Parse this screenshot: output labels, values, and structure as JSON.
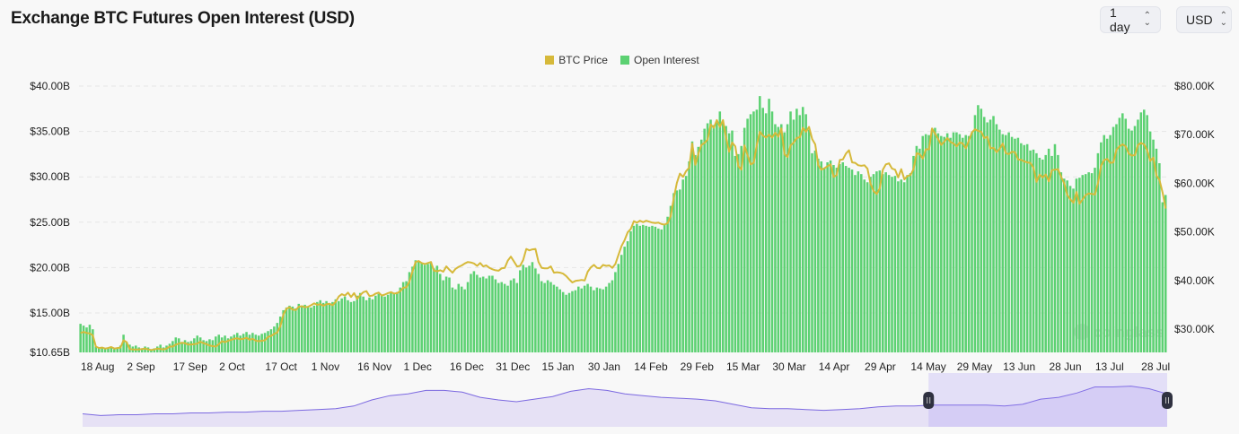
{
  "header": {
    "title": "Exchange BTC Futures Open Interest (USD)",
    "interval_select": {
      "value": "1 day",
      "icon": "chevron-up-down-icon"
    },
    "currency_select": {
      "value": "USD",
      "icon": "chevron-up-down-icon"
    }
  },
  "watermark": "coinglass",
  "chart_data": {
    "type": "bar+line",
    "title": "Exchange BTC Futures Open Interest (USD)",
    "legend": {
      "placement": "top-center"
    },
    "grid": true,
    "x_start": "2023-08-18",
    "x_end": "2024-08-05",
    "x_ticks": [
      "18 Aug",
      "2 Sep",
      "17 Sep",
      "2 Oct",
      "17 Oct",
      "1 Nov",
      "16 Nov",
      "1 Dec",
      "16 Dec",
      "31 Dec",
      "15 Jan",
      "30 Jan",
      "14 Feb",
      "29 Feb",
      "15 Mar",
      "30 Mar",
      "14 Apr",
      "29 Apr",
      "14 May",
      "29 May",
      "13 Jun",
      "28 Jun",
      "13 Jul",
      "28 Jul"
    ],
    "y_left": {
      "ticks": [
        "$40.00B",
        "$35.00B",
        "$30.00B",
        "$25.00B",
        "$20.00B",
        "$15.00B",
        "$10.65B"
      ],
      "tick_values": [
        40,
        35,
        30,
        25,
        20,
        15,
        10.65
      ],
      "range": [
        10.65,
        40
      ],
      "unit": "B USD"
    },
    "y_right": {
      "ticks": [
        "$80.00K",
        "$70.00K",
        "$60.00K",
        "$50.00K",
        "$40.00K",
        "$30.00K"
      ],
      "tick_values": [
        80,
        70,
        60,
        50,
        40,
        30
      ],
      "range": [
        25.2,
        80
      ],
      "unit": "K USD"
    },
    "series": [
      {
        "name": "BTC Price",
        "type": "line",
        "axis": "right",
        "color": "#d6b93a",
        "values": [
          29.2,
          29.4,
          29.2,
          29.1,
          28.7,
          26.4,
          26.1,
          26.2,
          26.0,
          26.1,
          26.3,
          26.0,
          26.1,
          26.2,
          27.7,
          27.3,
          25.9,
          25.8,
          25.8,
          25.8,
          25.9,
          26.0,
          25.8,
          25.7,
          25.8,
          26.0,
          25.9,
          25.8,
          26.0,
          26.4,
          26.4,
          26.8,
          27.0,
          27.2,
          27.1,
          26.8,
          26.8,
          26.9,
          27.0,
          27.4,
          27.1,
          26.9,
          26.6,
          26.5,
          26.4,
          26.9,
          27.5,
          27.3,
          27.6,
          27.8,
          28.0,
          28.1,
          27.9,
          28.0,
          28.2,
          27.8,
          28.0,
          27.6,
          27.5,
          27.6,
          27.7,
          28.4,
          28.6,
          29.0,
          29.3,
          30.6,
          33.0,
          34.2,
          34.5,
          34.0,
          33.9,
          34.6,
          34.7,
          34.5,
          34.6,
          34.9,
          35.3,
          35.0,
          35.1,
          34.8,
          35.1,
          35.2,
          34.9,
          35.6,
          36.7,
          37.2,
          36.9,
          37.5,
          36.6,
          37.4,
          36.2,
          37.0,
          37.6,
          37.8,
          36.8,
          36.9,
          37.3,
          37.5,
          36.9,
          37.1,
          37.4,
          37.6,
          37.3,
          37.4,
          37.8,
          38.5,
          38.6,
          39.8,
          41.9,
          43.8,
          44.0,
          43.6,
          43.4,
          43.6,
          43.8,
          42.0,
          41.9,
          42.1,
          41.8,
          42.9,
          42.2,
          41.6,
          42.4,
          42.8,
          43.1,
          43.5,
          43.8,
          43.7,
          43.5,
          43.0,
          43.6,
          42.9,
          43.1,
          42.6,
          42.3,
          42.1,
          42.0,
          42.5,
          42.6,
          44.1,
          44.9,
          43.9,
          42.9,
          43.0,
          44.2,
          46.5,
          46.2,
          46.4,
          46.5,
          43.8,
          42.6,
          42.5,
          42.5,
          42.9,
          41.6,
          41.7,
          41.6,
          41.4,
          40.9,
          40.2,
          39.6,
          39.9,
          40.0,
          40.1,
          40.0,
          41.8,
          42.7,
          43.2,
          42.6,
          42.5,
          43.2,
          43.0,
          43.1,
          42.6,
          43.4,
          45.3,
          47.1,
          48.3,
          49.9,
          50.6,
          52.2,
          51.9,
          52.3,
          52.0,
          52.3,
          52.1,
          51.9,
          51.8,
          51.9,
          51.6,
          51.5,
          51.8,
          53.3,
          57.0,
          60.1,
          62.0,
          61.3,
          62.5,
          63.2,
          68.2,
          63.8,
          66.1,
          67.9,
          68.3,
          69.0,
          72.1,
          71.4,
          73.0,
          71.6,
          73.0,
          69.4,
          66.5,
          68.4,
          67.6,
          63.5,
          62.8,
          67.8,
          65.7,
          63.9,
          64.2,
          67.9,
          70.6,
          69.8,
          69.4,
          70.0,
          69.4,
          70.4,
          69.6,
          71.3,
          66.0,
          65.4,
          67.8,
          68.4,
          69.3,
          69.5,
          71.4,
          70.6,
          71.6,
          69.1,
          68.0,
          63.7,
          62.8,
          63.1,
          63.5,
          63.9,
          61.3,
          61.7,
          64.8,
          64.9,
          66.1,
          66.8,
          64.3,
          64.2,
          63.7,
          63.6,
          63.7,
          63.0,
          59.9,
          58.4,
          57.8,
          59.0,
          62.8,
          63.9,
          64.1,
          63.0,
          62.8,
          61.2,
          62.9,
          60.8,
          61.5,
          61.7,
          62.9,
          66.2,
          66.0,
          65.1,
          67.0,
          67.0,
          71.3,
          70.2,
          69.1,
          67.9,
          68.6,
          69.3,
          68.5,
          68.2,
          67.6,
          68.4,
          68.2,
          67.2,
          68.8,
          70.5,
          71.1,
          70.8,
          70.6,
          69.3,
          69.6,
          67.2,
          67.3,
          66.4,
          67.1,
          68.2,
          66.2,
          66.0,
          66.5,
          66.4,
          64.9,
          64.8,
          64.5,
          64.3,
          64.2,
          63.2,
          60.3,
          61.8,
          61.2,
          61.8,
          60.4,
          62.7,
          62.8,
          62.9,
          61.3,
          60.0,
          57.6,
          56.7,
          56.0,
          58.2,
          55.8,
          56.7,
          57.6,
          57.9,
          57.8,
          57.7,
          60.1,
          63.6,
          64.8,
          65.0,
          64.2,
          64.3,
          66.9,
          67.6,
          68.0,
          67.6,
          66.1,
          65.7,
          65.8,
          67.9,
          68.3,
          68.0,
          66.8,
          64.6,
          65.3,
          61.6,
          60.7,
          58.1,
          54.8
        ]
      },
      {
        "name": "Open Interest",
        "type": "bar",
        "axis": "left",
        "color": "#5cd172",
        "values": [
          13.8,
          13.6,
          13.4,
          13.7,
          13.2,
          11.3,
          11.1,
          11.2,
          11.0,
          11.1,
          11.2,
          11.0,
          11.1,
          11.4,
          12.6,
          11.8,
          11.5,
          11.3,
          11.4,
          11.2,
          11.1,
          11.3,
          11.2,
          11.0,
          11.1,
          11.3,
          11.5,
          11.2,
          11.4,
          11.6,
          11.9,
          12.3,
          12.2,
          11.8,
          12.0,
          11.8,
          11.9,
          12.2,
          12.5,
          12.3,
          12.0,
          11.9,
          12.1,
          12.0,
          12.4,
          12.6,
          12.3,
          12.5,
          12.2,
          12.4,
          12.6,
          12.8,
          12.5,
          12.7,
          12.9,
          12.6,
          12.8,
          12.6,
          12.5,
          12.7,
          12.8,
          13.0,
          13.2,
          13.5,
          13.9,
          14.6,
          15.3,
          15.6,
          15.8,
          15.7,
          15.5,
          16.0,
          15.8,
          15.9,
          15.7,
          15.6,
          15.8,
          16.2,
          16.4,
          16.1,
          16.3,
          16.0,
          16.2,
          16.5,
          16.3,
          16.6,
          16.8,
          16.4,
          16.2,
          16.3,
          16.9,
          17.2,
          16.8,
          16.4,
          16.7,
          16.5,
          16.9,
          17.1,
          16.9,
          16.8,
          17.0,
          17.2,
          17.1,
          17.3,
          17.8,
          18.4,
          18.5,
          19.5,
          20.1,
          20.8,
          20.7,
          20.5,
          20.3,
          20.4,
          20.6,
          19.9,
          20.2,
          19.3,
          18.6,
          19.0,
          18.9,
          17.8,
          17.6,
          18.2,
          17.9,
          17.6,
          18.4,
          19.3,
          19.6,
          19.2,
          18.9,
          19.0,
          18.8,
          19.1,
          19.1,
          18.7,
          18.3,
          18.4,
          18.2,
          18.0,
          18.6,
          18.8,
          18.3,
          19.7,
          20.3,
          20.0,
          20.2,
          20.6,
          19.9,
          19.3,
          18.5,
          18.3,
          18.6,
          18.4,
          18.1,
          17.9,
          17.6,
          17.3,
          17.0,
          17.2,
          17.4,
          17.5,
          17.9,
          17.7,
          18.0,
          18.2,
          17.9,
          17.5,
          17.8,
          17.7,
          17.6,
          17.9,
          18.3,
          18.6,
          19.5,
          20.4,
          21.4,
          22.3,
          22.9,
          24.0,
          24.6,
          24.8,
          24.6,
          24.7,
          24.6,
          24.5,
          24.6,
          24.5,
          24.3,
          24.2,
          24.7,
          25.6,
          26.8,
          28.2,
          28.5,
          28.6,
          29.7,
          30.1,
          31.7,
          33.9,
          32.4,
          33.3,
          34.1,
          35.3,
          35.9,
          36.3,
          35.7,
          36.0,
          37.2,
          35.9,
          35.6,
          34.8,
          35.1,
          32.3,
          32.5,
          33.4,
          35.4,
          36.4,
          36.9,
          37.2,
          37.4,
          38.9,
          37.6,
          37.0,
          38.6,
          37.2,
          35.8,
          35.5,
          35.8,
          34.9,
          35.8,
          37.2,
          36.3,
          37.5,
          36.8,
          37.7,
          36.9,
          35.2,
          32.6,
          32.9,
          32.0,
          31.7,
          30.9,
          31.6,
          31.8,
          31.3,
          31.0,
          31.4,
          31.6,
          31.2,
          31.0,
          30.8,
          30.2,
          30.6,
          30.3,
          29.7,
          29.4,
          30.0,
          30.3,
          30.6,
          30.7,
          30.3,
          30.5,
          30.2,
          30.0,
          30.1,
          29.5,
          29.7,
          29.4,
          30.2,
          30.4,
          32.3,
          33.4,
          33.1,
          34.5,
          34.7,
          34.6,
          35.2,
          35.4,
          34.8,
          34.5,
          34.4,
          34.8,
          34.3,
          34.9,
          34.9,
          34.7,
          34.3,
          34.6,
          34.5,
          34.9,
          36.8,
          37.9,
          37.5,
          36.6,
          36.0,
          36.3,
          36.7,
          35.8,
          35.2,
          34.7,
          34.6,
          34.9,
          34.4,
          34.2,
          34.3,
          33.7,
          33.5,
          33.6,
          32.9,
          33.0,
          32.6,
          32.1,
          31.9,
          32.4,
          33.1,
          32.3,
          33.6,
          32.4,
          30.5,
          29.8,
          29.6,
          29.0,
          28.7,
          29.8,
          29.9,
          30.2,
          30.3,
          30.5,
          30.4,
          31.0,
          32.6,
          33.8,
          34.6,
          34.2,
          34.6,
          35.5,
          35.8,
          36.5,
          37.0,
          36.4,
          35.3,
          35.1,
          35.6,
          36.3,
          37.1,
          37.4,
          36.8,
          35.0,
          34.1,
          33.1,
          31.5,
          27.2,
          28.0
        ]
      }
    ],
    "navigator": {
      "color": "#7b68e0",
      "selection_fraction": [
        0.78,
        1.0
      ],
      "values": [
        15,
        13,
        14,
        14,
        15,
        15,
        16,
        16,
        17,
        17,
        18,
        18,
        19,
        20,
        21,
        24,
        31,
        36,
        38,
        42,
        42,
        40,
        34,
        31,
        29,
        32,
        35,
        41,
        44,
        42,
        38,
        36,
        34,
        33,
        32,
        30,
        26,
        22,
        21,
        21,
        20,
        19,
        20,
        21,
        23,
        24,
        24,
        25,
        25,
        25,
        25,
        24,
        26,
        32,
        34,
        39,
        46,
        46,
        47,
        44,
        38
      ]
    }
  }
}
